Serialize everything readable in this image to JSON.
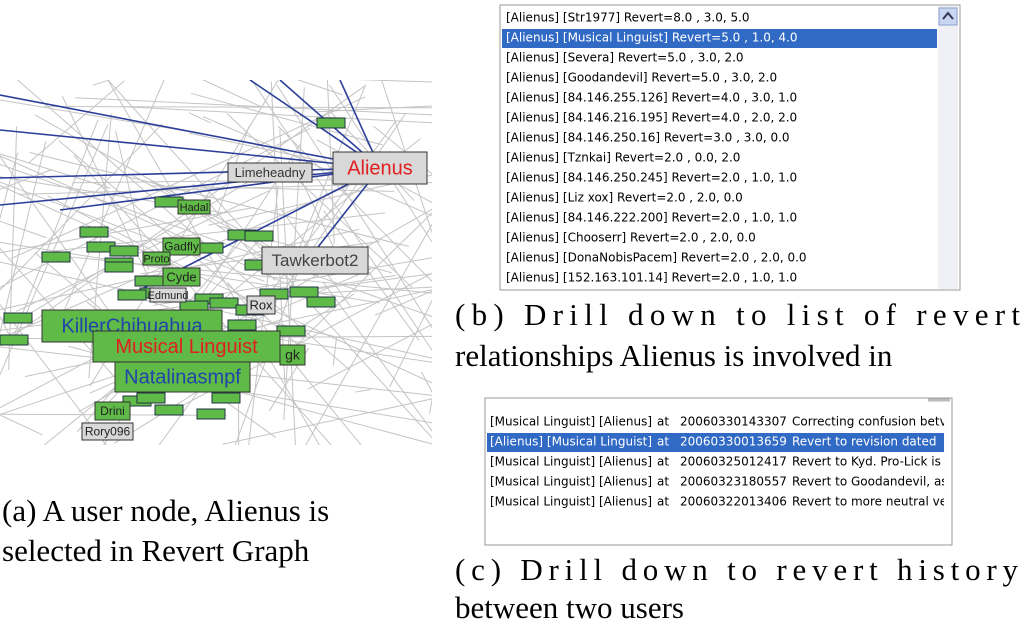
{
  "graph": {
    "nodes": [
      {
        "label": "Alienus"
      },
      {
        "label": "Limeheadny"
      },
      {
        "label": "Tawkerbot2"
      },
      {
        "label": "KillerChihuahua"
      },
      {
        "label": "Musical Linguist"
      },
      {
        "label": "Natalinasmpf"
      },
      {
        "label": "Drini"
      },
      {
        "label": "Rory096"
      },
      {
        "label": "Cyde"
      },
      {
        "label": "Gadfly"
      },
      {
        "label": "Hadal"
      },
      {
        "label": "Proto"
      },
      {
        "label": "gk"
      },
      {
        "label": "Rox"
      },
      {
        "label": "Edmund"
      }
    ]
  },
  "caption_a": {
    "lines": [
      "(a) A user node, Alienus is",
      "selected in Revert Graph"
    ]
  },
  "revert_list": {
    "rows": [
      "[Alienus] [Str1977] Revert=8.0 , 3.0,  5.0",
      "[Alienus] [Musical Linguist] Revert=5.0 , 1.0,  4.0",
      "[Alienus] [Severa] Revert=5.0 , 3.0,  2.0",
      "[Alienus] [Goodandevil] Revert=5.0 , 3.0,  2.0",
      "[Alienus] [84.146.255.126] Revert=4.0 , 3.0,  1.0",
      "[Alienus] [84.146.216.195] Revert=4.0 , 2.0,  2.0",
      "[Alienus] [84.146.250.16] Revert=3.0 , 3.0,  0.0",
      "[Alienus] [Tznkai] Revert=2.0 , 0.0,  2.0",
      "[Alienus] [84.146.250.245] Revert=2.0 , 1.0,  1.0",
      "[Alienus] [Liz xox] Revert=2.0 , 2.0,  0.0",
      "[Alienus] [84.146.222.200] Revert=2.0 , 1.0,  1.0",
      "[Alienus] [Chooserr] Revert=2.0 , 2.0,  0.0",
      "[Alienus] [DonaNobisPacem] Revert=2.0 , 2.0,  0.0",
      "[Alienus] [152.163.101.14] Revert=2.0 , 1.0,  1.0"
    ]
  },
  "caption_b": {
    "lines": [
      "(b) Drill down to list of revert",
      "relationships Alienus is involved in"
    ]
  },
  "history": {
    "rows": [
      [
        "[Musical Linguist] [Alienus]",
        "at",
        "20060330143307",
        "Correcting confusion betv"
      ],
      [
        "[Alienus] [Musical Linguist]",
        "at",
        "20060330013659",
        "Revert to revision dated"
      ],
      [
        "[Musical Linguist] [Alienus]",
        "at",
        "20060325012417",
        "Revert to Kyd. Pro-Lick is"
      ],
      [
        "[Musical Linguist] [Alienus]",
        "at",
        "20060323180557",
        "Revert to Goodandevil, as"
      ],
      [
        "[Musical Linguist] [Alienus]",
        "at",
        "20060322013406",
        "Revert to more neutral ve"
      ]
    ]
  },
  "caption_c": {
    "lines": [
      "(c) Drill down to revert history",
      "between two users"
    ]
  }
}
